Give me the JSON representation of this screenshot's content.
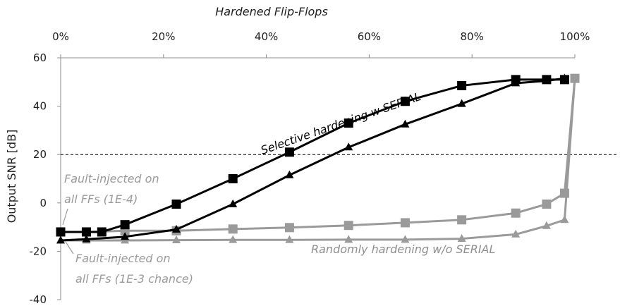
{
  "chart_data": {
    "type": "line",
    "title": "",
    "x_axis_title": "Hardened Flip-Flops",
    "ylabel": "Output SNR [dB]",
    "x_ticks": [
      "0%",
      "20%",
      "40%",
      "60%",
      "80%",
      "100%"
    ],
    "y_ticks": [
      "60",
      "40",
      "20",
      "0",
      "-20",
      "-40"
    ],
    "xlim": [
      0,
      100
    ],
    "ylim": [
      -40,
      60
    ],
    "grid": false,
    "reference_line": {
      "y": 20,
      "style": "dashed"
    },
    "series": [
      {
        "key": "selective_1e4",
        "marker": "square",
        "color": "#000000",
        "x": [
          0,
          5,
          8,
          12.5,
          22.5,
          33.5,
          44.5,
          56,
          67,
          78,
          88.5,
          94.5,
          98
        ],
        "values": [
          -12,
          -12,
          -12,
          -9,
          -0.5,
          10,
          21,
          33,
          42,
          48.5,
          51,
          51,
          51
        ]
      },
      {
        "key": "selective_1e3",
        "marker": "triangle",
        "color": "#000000",
        "x": [
          0,
          5,
          12.5,
          22.5,
          33.5,
          44.5,
          56,
          67,
          78,
          88.5,
          94.5,
          98
        ],
        "values": [
          -15.5,
          -15,
          -14,
          -11,
          -0.5,
          11.5,
          23,
          32.5,
          41,
          49.5,
          50.5,
          51.5
        ]
      },
      {
        "key": "random_1e4",
        "marker": "square",
        "color": "#9a9a9a",
        "x": [
          0,
          5,
          12.5,
          22.5,
          33.5,
          44.5,
          56,
          67,
          78,
          88.5,
          94.5,
          98,
          100
        ],
        "values": [
          -12,
          -12,
          -11.5,
          -11.5,
          -10.8,
          -10.2,
          -9.3,
          -8.2,
          -7,
          -4.2,
          -0.5,
          4,
          51.5
        ]
      },
      {
        "key": "random_1e3",
        "marker": "triangle",
        "color": "#9a9a9a",
        "x": [
          0,
          5,
          12.5,
          22.5,
          33.5,
          44.5,
          56,
          67,
          78,
          88.5,
          94.5,
          98,
          100
        ],
        "values": [
          -15.5,
          -15.5,
          -15.5,
          -15.4,
          -15.3,
          -15.3,
          -15.2,
          -15.2,
          -14.8,
          -13,
          -9.5,
          -7,
          51.5
        ]
      }
    ],
    "annotations": [
      {
        "key": "selective",
        "text": "Selective hardening w SERIAL",
        "color": "#000000"
      },
      {
        "key": "random",
        "text": "Randomly hardening w/o SERIAL",
        "color": "#8f8f8f"
      },
      {
        "key": "fault_1e4_line1",
        "text": "Fault-injected on",
        "color": "#9a9a9a"
      },
      {
        "key": "fault_1e4_line2",
        "text": "all FFs (1E-4)",
        "color": "#9a9a9a"
      },
      {
        "key": "fault_1e3_line1",
        "text": "Fault-injected on",
        "color": "#9a9a9a"
      },
      {
        "key": "fault_1e3_line2",
        "text": "all FFs (1E-3 chance)",
        "color": "#9a9a9a"
      }
    ]
  }
}
